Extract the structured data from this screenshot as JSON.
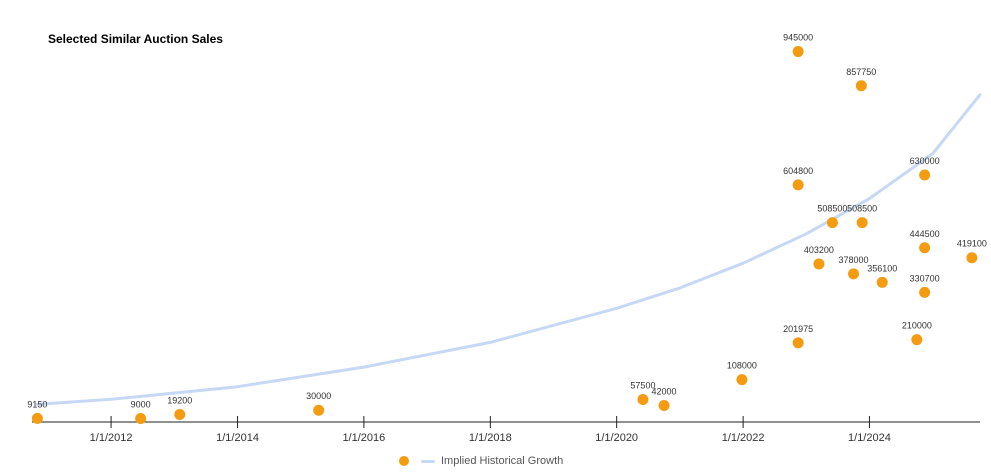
{
  "chart_data": {
    "type": "scatter",
    "title": "Selected Similar Auction Sales",
    "xlabel": "",
    "ylabel": "",
    "x_ticks": [
      "1/1/2012",
      "1/1/2014",
      "1/1/2016",
      "1/1/2018",
      "1/1/2020",
      "1/1/2022",
      "1/1/2024"
    ],
    "x_range": [
      "2010-10-01",
      "2025-10-01"
    ],
    "y_range": [
      0,
      1000000
    ],
    "grid": false,
    "legend_position": "bottom",
    "colors": {
      "points": "#F39C12",
      "trend": "#C6D8F5",
      "axis": "#222222"
    },
    "series": [
      {
        "name": "",
        "points": [
          {
            "date": "2010-11-01",
            "value": 9150,
            "label": "9150"
          },
          {
            "date": "2012-06-20",
            "value": 9000,
            "label": "9000"
          },
          {
            "date": "2013-02-01",
            "value": 19200,
            "label": "19200"
          },
          {
            "date": "2015-04-15",
            "value": 30000,
            "label": "30000"
          },
          {
            "date": "2020-06-01",
            "value": 57500,
            "label": "57500"
          },
          {
            "date": "2020-10-01",
            "value": 42000,
            "label": "42000"
          },
          {
            "date": "2021-12-25",
            "value": 108000,
            "label": "108000"
          },
          {
            "date": "2022-11-15",
            "value": 945000,
            "label": "945000"
          },
          {
            "date": "2022-11-15",
            "value": 604800,
            "label": "604800"
          },
          {
            "date": "2022-11-15",
            "value": 201975,
            "label": "201975"
          },
          {
            "date": "2023-03-15",
            "value": 403200,
            "label": "403200"
          },
          {
            "date": "2023-06-01",
            "value": 508500,
            "label": "508500"
          },
          {
            "date": "2023-10-01",
            "value": 378000,
            "label": "378000"
          },
          {
            "date": "2023-11-15",
            "value": 857750,
            "label": "857750"
          },
          {
            "date": "2023-11-20",
            "value": 508500,
            "label": "508500"
          },
          {
            "date": "2024-03-15",
            "value": 356100,
            "label": "356100"
          },
          {
            "date": "2024-10-01",
            "value": 210000,
            "label": "210000"
          },
          {
            "date": "2024-11-15",
            "value": 630000,
            "label": "630000"
          },
          {
            "date": "2024-11-15",
            "value": 444500,
            "label": "444500"
          },
          {
            "date": "2024-11-15",
            "value": 330700,
            "label": "330700"
          },
          {
            "date": "2025-08-15",
            "value": 419100,
            "label": "419100"
          }
        ]
      },
      {
        "name": "Implied Historical Growth",
        "type": "line",
        "curve": [
          {
            "date": "2010-11-01",
            "value": 45000
          },
          {
            "date": "2012-01-01",
            "value": 58000
          },
          {
            "date": "2014-01-01",
            "value": 90000
          },
          {
            "date": "2016-01-01",
            "value": 140000
          },
          {
            "date": "2018-01-01",
            "value": 203000
          },
          {
            "date": "2020-01-01",
            "value": 290000
          },
          {
            "date": "2021-01-01",
            "value": 342000
          },
          {
            "date": "2022-01-01",
            "value": 405000
          },
          {
            "date": "2023-01-01",
            "value": 480000
          },
          {
            "date": "2024-01-01",
            "value": 570000
          },
          {
            "date": "2025-01-01",
            "value": 685000
          },
          {
            "date": "2025-10-01",
            "value": 835000
          }
        ]
      }
    ]
  }
}
